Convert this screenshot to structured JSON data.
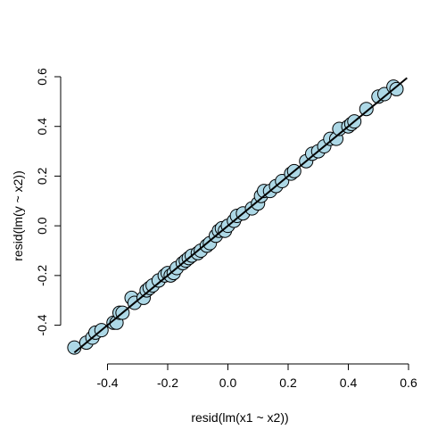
{
  "chart_data": {
    "type": "scatter",
    "title": "",
    "xlabel": "resid(lm(x1 ~ x2))",
    "ylabel": "resid(lm(y ~ x2))",
    "xlim": [
      -0.52,
      0.6
    ],
    "ylim": [
      -0.52,
      0.6
    ],
    "xticks": [
      -0.4,
      -0.2,
      0.0,
      0.2,
      0.4,
      0.6
    ],
    "yticks": [
      -0.4,
      -0.2,
      0.0,
      0.2,
      0.4,
      0.6
    ],
    "xtick_labels": [
      "-0.4",
      "-0.2",
      "0.0",
      "0.2",
      "0.4",
      "0.6"
    ],
    "ytick_labels": [
      "-0.4",
      "-0.2",
      "0.0",
      "0.2",
      "0.4",
      "0.6"
    ],
    "grid": false,
    "point_fill": "#add8e6",
    "point_stroke": "#000000",
    "line": {
      "type": "regression",
      "intercept": 0.0,
      "slope": 1.0,
      "color": "#000000"
    },
    "points": [
      {
        "x": -0.51,
        "y": -0.49
      },
      {
        "x": -0.47,
        "y": -0.47
      },
      {
        "x": -0.45,
        "y": -0.45
      },
      {
        "x": -0.44,
        "y": -0.43
      },
      {
        "x": -0.42,
        "y": -0.42
      },
      {
        "x": -0.38,
        "y": -0.39
      },
      {
        "x": -0.37,
        "y": -0.39
      },
      {
        "x": -0.36,
        "y": -0.35
      },
      {
        "x": -0.35,
        "y": -0.35
      },
      {
        "x": -0.32,
        "y": -0.29
      },
      {
        "x": -0.31,
        "y": -0.31
      },
      {
        "x": -0.28,
        "y": -0.29
      },
      {
        "x": -0.27,
        "y": -0.26
      },
      {
        "x": -0.26,
        "y": -0.25
      },
      {
        "x": -0.25,
        "y": -0.24
      },
      {
        "x": -0.23,
        "y": -0.22
      },
      {
        "x": -0.21,
        "y": -0.2
      },
      {
        "x": -0.2,
        "y": -0.19
      },
      {
        "x": -0.19,
        "y": -0.2
      },
      {
        "x": -0.18,
        "y": -0.19
      },
      {
        "x": -0.17,
        "y": -0.17
      },
      {
        "x": -0.15,
        "y": -0.15
      },
      {
        "x": -0.14,
        "y": -0.14
      },
      {
        "x": -0.13,
        "y": -0.13
      },
      {
        "x": -0.12,
        "y": -0.12
      },
      {
        "x": -0.1,
        "y": -0.11
      },
      {
        "x": -0.09,
        "y": -0.1
      },
      {
        "x": -0.07,
        "y": -0.08
      },
      {
        "x": -0.06,
        "y": -0.07
      },
      {
        "x": -0.04,
        "y": -0.04
      },
      {
        "x": -0.03,
        "y": -0.02
      },
      {
        "x": -0.02,
        "y": -0.01
      },
      {
        "x": -0.01,
        "y": -0.02
      },
      {
        "x": 0.0,
        "y": 0.0
      },
      {
        "x": 0.02,
        "y": 0.02
      },
      {
        "x": 0.03,
        "y": 0.04
      },
      {
        "x": 0.05,
        "y": 0.05
      },
      {
        "x": 0.08,
        "y": 0.07
      },
      {
        "x": 0.1,
        "y": 0.09
      },
      {
        "x": 0.11,
        "y": 0.12
      },
      {
        "x": 0.12,
        "y": 0.14
      },
      {
        "x": 0.14,
        "y": 0.14
      },
      {
        "x": 0.16,
        "y": 0.16
      },
      {
        "x": 0.18,
        "y": 0.18
      },
      {
        "x": 0.21,
        "y": 0.21
      },
      {
        "x": 0.22,
        "y": 0.22
      },
      {
        "x": 0.26,
        "y": 0.26
      },
      {
        "x": 0.28,
        "y": 0.29
      },
      {
        "x": 0.3,
        "y": 0.3
      },
      {
        "x": 0.32,
        "y": 0.32
      },
      {
        "x": 0.34,
        "y": 0.35
      },
      {
        "x": 0.36,
        "y": 0.35
      },
      {
        "x": 0.37,
        "y": 0.39
      },
      {
        "x": 0.4,
        "y": 0.4
      },
      {
        "x": 0.41,
        "y": 0.41
      },
      {
        "x": 0.42,
        "y": 0.42
      },
      {
        "x": 0.46,
        "y": 0.47
      },
      {
        "x": 0.5,
        "y": 0.52
      },
      {
        "x": 0.52,
        "y": 0.53
      },
      {
        "x": 0.55,
        "y": 0.56
      },
      {
        "x": 0.56,
        "y": 0.55
      }
    ]
  }
}
